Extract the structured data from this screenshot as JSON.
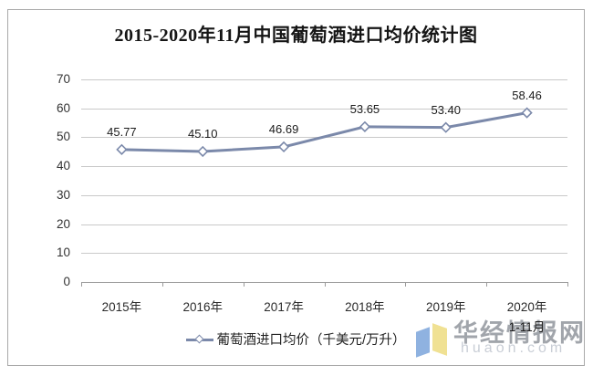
{
  "chart_data": {
    "type": "line",
    "title": "2015-2020年11月中国葡萄酒进口均价统计图",
    "categories": [
      "2015年",
      "2016年",
      "2017年",
      "2018年",
      "2019年",
      "2020年"
    ],
    "category_sublabels": [
      "",
      "",
      "",
      "",
      "",
      "1-11月"
    ],
    "series": [
      {
        "name": "葡萄酒进口均价（千美元/万升）",
        "values": [
          45.77,
          45.1,
          46.69,
          53.65,
          53.4,
          58.46
        ],
        "color": "#7b89aa",
        "marker": "open-diamond"
      }
    ],
    "value_labels": [
      "45.77",
      "45.10",
      "46.69",
      "53.65",
      "53.40",
      "58.46"
    ],
    "ylim": [
      0,
      70
    ],
    "yticks": [
      0,
      10,
      20,
      30,
      40,
      50,
      60,
      70
    ],
    "grid": true,
    "legend_position": "bottom",
    "colors": {
      "line": "#7b89aa",
      "gridline": "#c9c9c9",
      "axis": "#9b9b9b"
    }
  },
  "legend": {
    "label": "葡萄酒进口均价（千美元/万升）"
  },
  "watermark": {
    "site_name": "华经情报网",
    "site_url": "huaon.com",
    "logo_blue": "#8fb2e0",
    "logo_yellow": "#f0e193"
  }
}
